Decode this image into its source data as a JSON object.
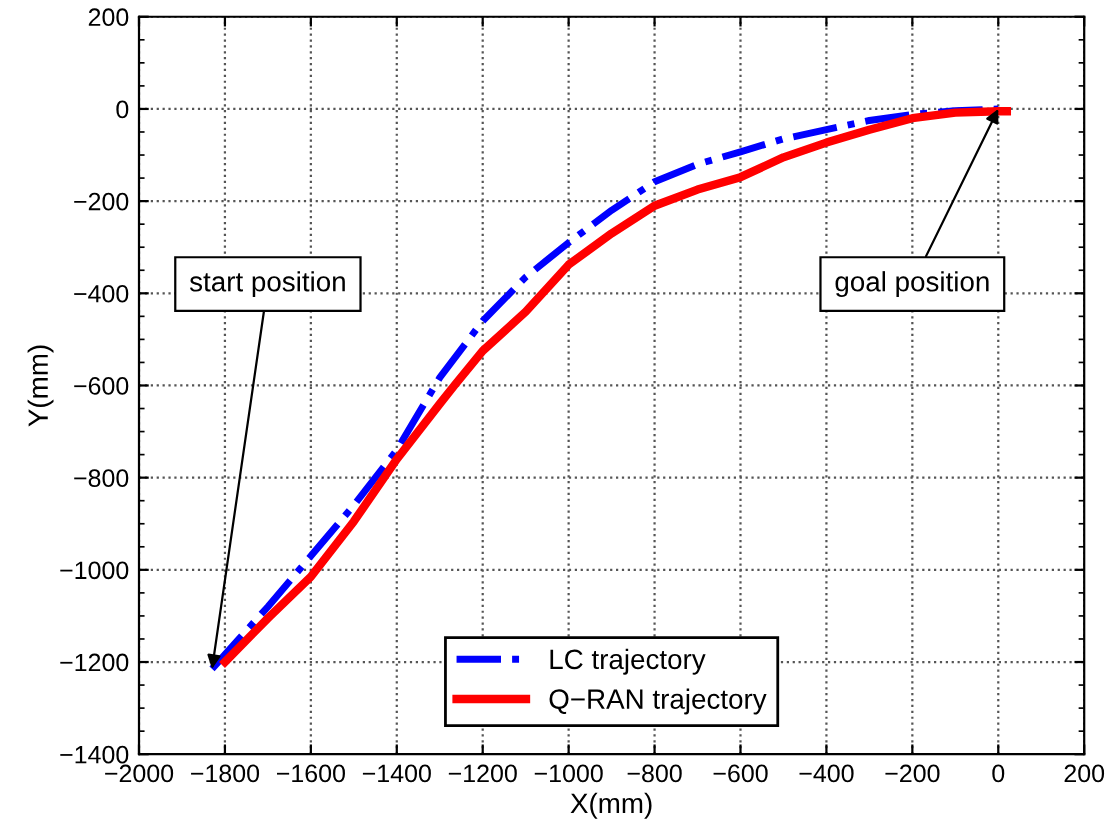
{
  "chart_data": {
    "type": "line",
    "xlabel": "X(mm)",
    "ylabel": "Y(mm)",
    "xlim": [
      -2000,
      200
    ],
    "xticks": [
      -2000,
      -1800,
      -1600,
      -1400,
      -1200,
      -1000,
      -800,
      -600,
      -400,
      -200,
      0,
      200
    ],
    "ylim": [
      -1400,
      200
    ],
    "yticks": [
      -1400,
      -1200,
      -1000,
      -800,
      -600,
      -400,
      -200,
      0,
      200
    ],
    "grid": true,
    "legend": "bottom",
    "series": [
      {
        "name": "LC trajectory",
        "color": "#0000ff",
        "line_style": "dashdot",
        "x": [
          -1830,
          -1700,
          -1600,
          -1500,
          -1400,
          -1300,
          -1200,
          -1100,
          -1000,
          -900,
          -800,
          -700,
          -600,
          -500,
          -400,
          -300,
          -200,
          -100,
          0
        ],
        "values": [
          -1215,
          -1080,
          -970,
          -860,
          -740,
          -583,
          -460,
          -365,
          -290,
          -220,
          -158,
          -120,
          -93,
          -65,
          -45,
          -25,
          -12,
          -4,
          0
        ]
      },
      {
        "name": "Q−RAN trajectory",
        "color": "#ff0000",
        "line_style": "solid",
        "x": [
          -1800,
          -1700,
          -1600,
          -1500,
          -1400,
          -1300,
          -1266,
          -1200,
          -1100,
          -1000,
          -900,
          -800,
          -700,
          -600,
          -500,
          -400,
          -300,
          -200,
          -100,
          0,
          20
        ],
        "values": [
          -1200,
          -1105,
          -1015,
          -895,
          -760,
          -640,
          -600,
          -525,
          -440,
          -338,
          -270,
          -210,
          -175,
          -148,
          -105,
          -73,
          -45,
          -20,
          -8,
          -5,
          -5
        ]
      }
    ],
    "annotations": [
      {
        "text": "start position",
        "x": -1830,
        "y": -1215
      },
      {
        "text": "goal position",
        "x": 0,
        "y": 0
      }
    ]
  }
}
